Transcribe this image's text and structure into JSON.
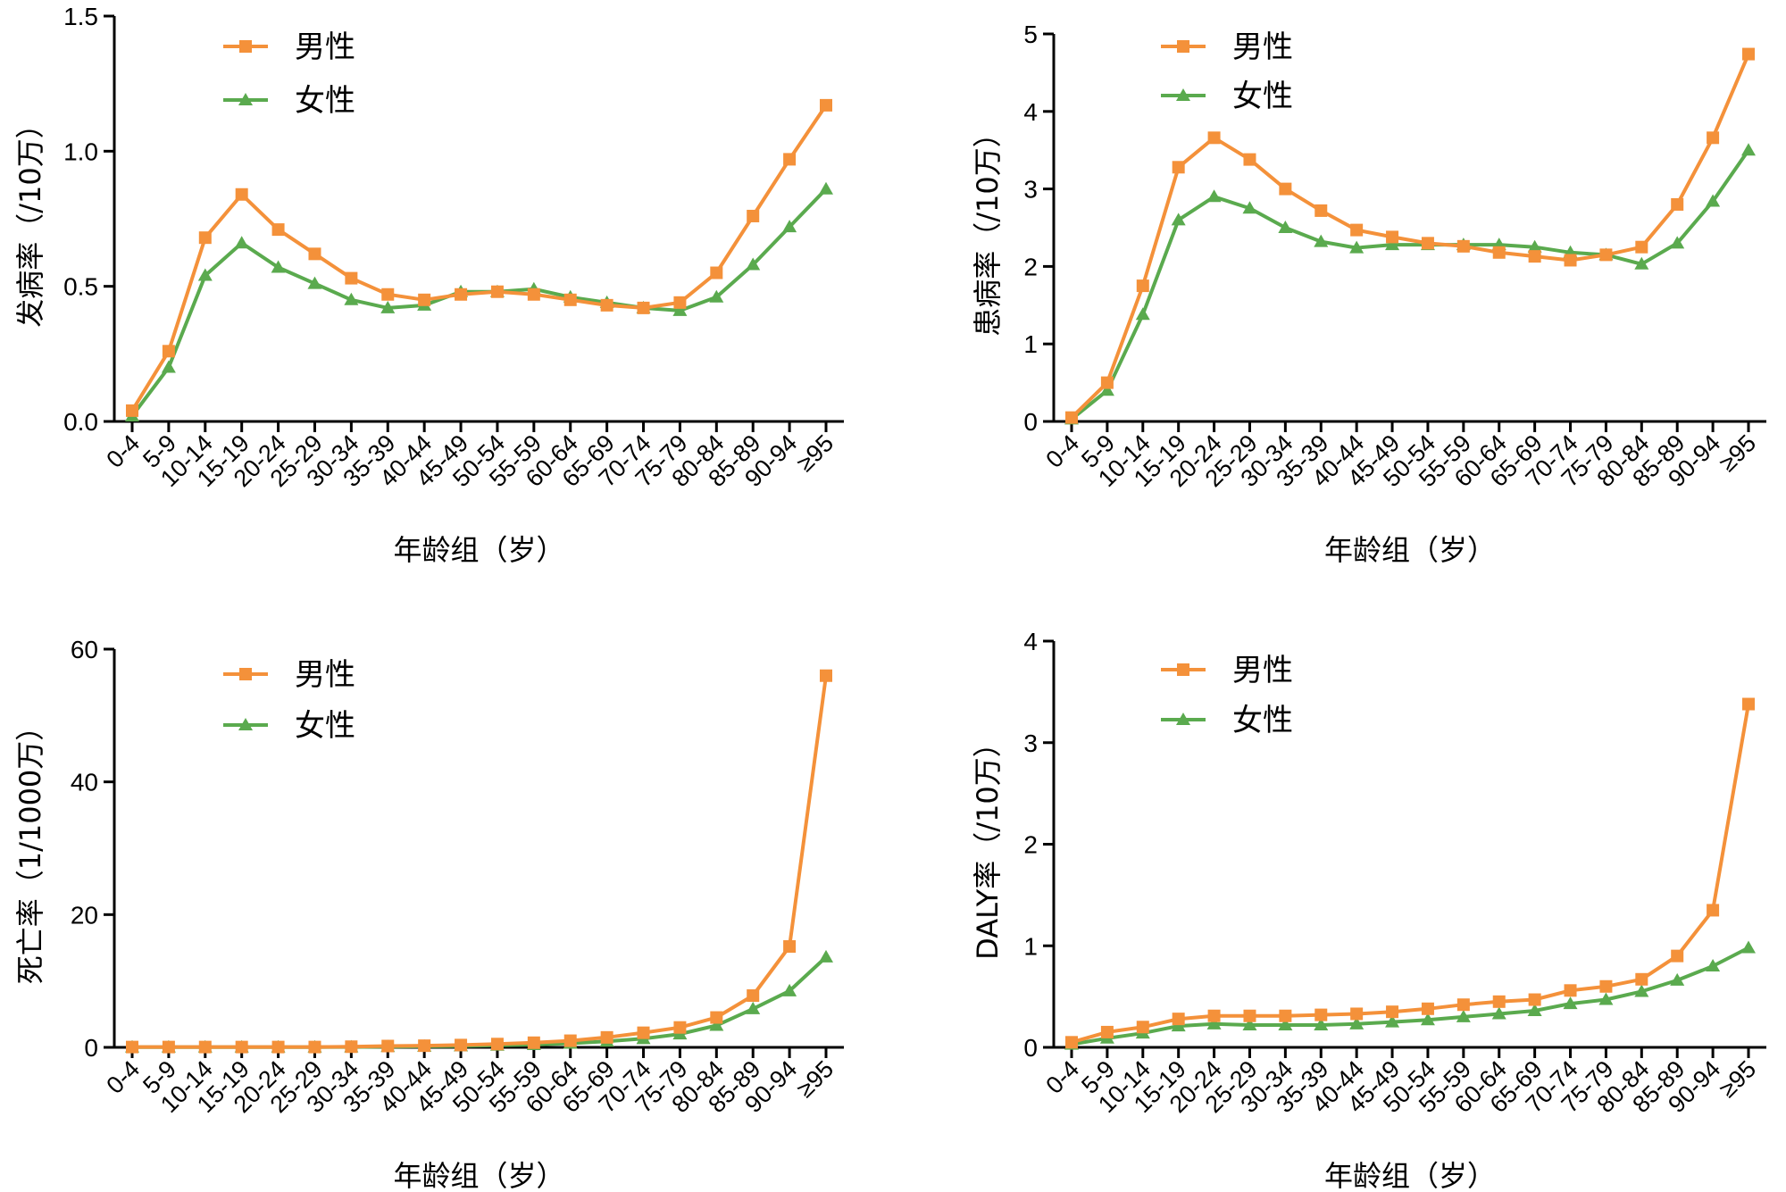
{
  "colors": {
    "male": "#f4913a",
    "female": "#5aaa4e",
    "axis": "#000000"
  },
  "chart_data": [
    {
      "type": "line",
      "categories": [
        "0-4",
        "5-9",
        "10-14",
        "15-19",
        "20-24",
        "25-29",
        "30-34",
        "35-39",
        "40-44",
        "45-49",
        "50-54",
        "55-59",
        "60-64",
        "65-69",
        "70-74",
        "75-79",
        "80-84",
        "85-89",
        "90-94",
        "≥95"
      ],
      "series": [
        {
          "name": "男性",
          "marker": "square",
          "values": [
            0.04,
            0.26,
            0.68,
            0.84,
            0.71,
            0.62,
            0.53,
            0.47,
            0.45,
            0.47,
            0.48,
            0.47,
            0.45,
            0.43,
            0.42,
            0.44,
            0.55,
            0.76,
            0.97,
            1.17
          ]
        },
        {
          "name": "女性",
          "marker": "triangle",
          "values": [
            0.02,
            0.2,
            0.54,
            0.66,
            0.57,
            0.51,
            0.45,
            0.42,
            0.43,
            0.48,
            0.48,
            0.49,
            0.46,
            0.44,
            0.42,
            0.41,
            0.46,
            0.58,
            0.72,
            0.86
          ]
        }
      ],
      "ylabel": "发病率（/10万）",
      "xlabel": "年龄组（岁）",
      "ylim": [
        0,
        1.5
      ],
      "yticks": [
        0.0,
        0.5,
        1.0,
        1.5
      ],
      "ytick_labels": [
        "0.0",
        "0.5",
        "1.0",
        "1.5"
      ],
      "legend": "top-left"
    },
    {
      "type": "line",
      "categories": [
        "0-4",
        "5-9",
        "10-14",
        "15-19",
        "20-24",
        "25-29",
        "30-34",
        "35-39",
        "40-44",
        "45-49",
        "50-54",
        "55-59",
        "60-64",
        "65-69",
        "70-74",
        "75-79",
        "80-84",
        "85-89",
        "90-94",
        "≥95"
      ],
      "series": [
        {
          "name": "男性",
          "marker": "square",
          "values": [
            0.05,
            0.5,
            1.75,
            3.28,
            3.66,
            3.38,
            3.0,
            2.72,
            2.47,
            2.38,
            2.3,
            2.26,
            2.18,
            2.13,
            2.08,
            2.15,
            2.25,
            2.8,
            3.66,
            4.74
          ]
        },
        {
          "name": "女性",
          "marker": "triangle",
          "values": [
            0.03,
            0.4,
            1.38,
            2.6,
            2.9,
            2.75,
            2.5,
            2.32,
            2.24,
            2.28,
            2.28,
            2.28,
            2.28,
            2.25,
            2.18,
            2.15,
            2.03,
            2.3,
            2.84,
            3.5
          ]
        }
      ],
      "ylabel": "患病率（/10万）",
      "xlabel": "年龄组（岁）",
      "ylim": [
        0,
        5
      ],
      "yticks": [
        0,
        1,
        2,
        3,
        4,
        5
      ],
      "ytick_labels": [
        "0",
        "1",
        "2",
        "3",
        "4",
        "5"
      ],
      "legend": "top-left"
    },
    {
      "type": "line",
      "categories": [
        "0-4",
        "5-9",
        "10-14",
        "15-19",
        "20-24",
        "25-29",
        "30-34",
        "35-39",
        "40-44",
        "45-49",
        "50-54",
        "55-59",
        "60-64",
        "65-69",
        "70-74",
        "75-79",
        "80-84",
        "85-89",
        "90-94",
        "≥95"
      ],
      "series": [
        {
          "name": "男性",
          "marker": "square",
          "values": [
            0.05,
            0.05,
            0.05,
            0.05,
            0.05,
            0.05,
            0.1,
            0.2,
            0.25,
            0.35,
            0.5,
            0.7,
            1.0,
            1.5,
            2.2,
            3.0,
            4.5,
            7.8,
            15.2,
            56.0
          ]
        },
        {
          "name": "女性",
          "marker": "triangle",
          "values": [
            0.03,
            0.03,
            0.03,
            0.03,
            0.03,
            0.03,
            0.05,
            0.1,
            0.15,
            0.2,
            0.3,
            0.4,
            0.6,
            0.9,
            1.3,
            2.0,
            3.3,
            5.8,
            8.5,
            13.6
          ]
        }
      ],
      "ylabel": "死亡率（1/1000万）",
      "xlabel": "年龄组（岁）",
      "ylim": [
        0,
        60
      ],
      "yticks": [
        0,
        20,
        40,
        60
      ],
      "ytick_labels": [
        "0",
        "20",
        "40",
        "60"
      ],
      "legend": "top-left"
    },
    {
      "type": "line",
      "categories": [
        "0-4",
        "5-9",
        "10-14",
        "15-19",
        "20-24",
        "25-29",
        "30-34",
        "35-39",
        "40-44",
        "45-49",
        "50-54",
        "55-59",
        "60-64",
        "65-69",
        "70-74",
        "75-79",
        "80-84",
        "85-89",
        "90-94",
        "≥95"
      ],
      "series": [
        {
          "name": "男性",
          "marker": "square",
          "values": [
            0.05,
            0.15,
            0.2,
            0.28,
            0.31,
            0.31,
            0.31,
            0.32,
            0.33,
            0.35,
            0.38,
            0.42,
            0.45,
            0.47,
            0.56,
            0.6,
            0.67,
            0.9,
            1.35,
            3.38
          ]
        },
        {
          "name": "女性",
          "marker": "triangle",
          "values": [
            0.03,
            0.09,
            0.14,
            0.21,
            0.23,
            0.22,
            0.22,
            0.22,
            0.23,
            0.25,
            0.27,
            0.3,
            0.33,
            0.36,
            0.43,
            0.47,
            0.55,
            0.66,
            0.8,
            0.98
          ]
        }
      ],
      "ylabel": "DALY率（/10万）",
      "xlabel": "年龄组（岁）",
      "ylim": [
        0,
        4
      ],
      "yticks": [
        0,
        1,
        2,
        3,
        4
      ],
      "ytick_labels": [
        "0",
        "1",
        "2",
        "3",
        "4"
      ],
      "legend": "top-left"
    }
  ]
}
